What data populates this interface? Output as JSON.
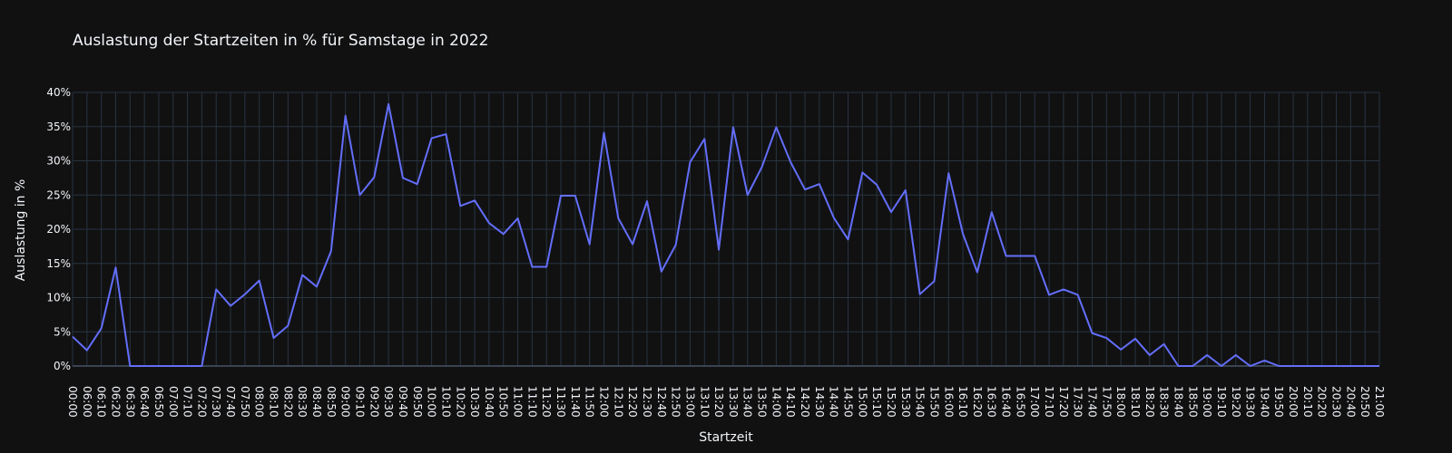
{
  "chart_data": {
    "type": "line",
    "title": "Auslastung der Startzeiten in % für Samstage in 2022",
    "xlabel": "Startzeit",
    "ylabel": "Auslastung in %",
    "ylim": [
      0,
      40
    ],
    "yticks": [
      0,
      5,
      10,
      15,
      20,
      25,
      30,
      35,
      40
    ],
    "y_tick_labels": [
      "0%",
      "5%",
      "10%",
      "15%",
      "20%",
      "25%",
      "30%",
      "35%",
      "40%"
    ],
    "grid": true,
    "line_color": "#636efa",
    "x": [
      "00:00",
      "06:00",
      "06:10",
      "06:20",
      "06:30",
      "06:40",
      "06:50",
      "07:00",
      "07:10",
      "07:20",
      "07:30",
      "07:40",
      "07:50",
      "08:00",
      "08:10",
      "08:20",
      "08:30",
      "08:40",
      "08:50",
      "09:00",
      "09:10",
      "09:20",
      "09:30",
      "09:40",
      "09:50",
      "10:00",
      "10:10",
      "10:20",
      "10:30",
      "10:40",
      "10:50",
      "11:00",
      "11:10",
      "11:20",
      "11:30",
      "11:40",
      "11:50",
      "12:00",
      "12:10",
      "12:20",
      "12:30",
      "12:40",
      "12:50",
      "13:00",
      "13:10",
      "13:20",
      "13:30",
      "13:40",
      "13:50",
      "14:00",
      "14:10",
      "14:20",
      "14:30",
      "14:40",
      "14:50",
      "15:00",
      "15:10",
      "15:20",
      "15:30",
      "15:40",
      "15:50",
      "16:00",
      "16:10",
      "16:20",
      "16:30",
      "16:40",
      "16:50",
      "17:00",
      "17:10",
      "17:20",
      "17:30",
      "17:40",
      "17:50",
      "18:00",
      "18:10",
      "18:20",
      "18:30",
      "18:40",
      "18:50",
      "19:00",
      "19:10",
      "19:20",
      "19:30",
      "19:40",
      "19:50",
      "20:00",
      "20:10",
      "20:20",
      "20:30",
      "20:40",
      "20:50",
      "21:00"
    ],
    "values": [
      4.3,
      2.3,
      5.5,
      14.4,
      0,
      0,
      0,
      0,
      0,
      0,
      11.2,
      8.8,
      10.5,
      12.5,
      4.1,
      5.9,
      13.3,
      11.6,
      16.8,
      36.6,
      25.0,
      27.6,
      38.3,
      27.5,
      26.6,
      33.3,
      33.9,
      23.4,
      24.2,
      20.9,
      19.3,
      21.6,
      14.5,
      14.5,
      24.9,
      24.9,
      17.8,
      34.1,
      21.6,
      17.8,
      24.1,
      13.8,
      17.7,
      29.8,
      33.2,
      17.0,
      34.9,
      25.0,
      29.1,
      34.9,
      29.8,
      25.8,
      26.6,
      21.7,
      18.5,
      28.3,
      26.5,
      22.5,
      25.7,
      10.5,
      12.4,
      28.2,
      19.3,
      13.7,
      22.5,
      16.1,
      16.1,
      16.1,
      10.4,
      11.2,
      10.4,
      4.8,
      4.1,
      2.4,
      4.0,
      1.6,
      3.2,
      0,
      0,
      1.6,
      0,
      1.6,
      0,
      0.8,
      0,
      0,
      0,
      0,
      0,
      0,
      0,
      0
    ]
  }
}
